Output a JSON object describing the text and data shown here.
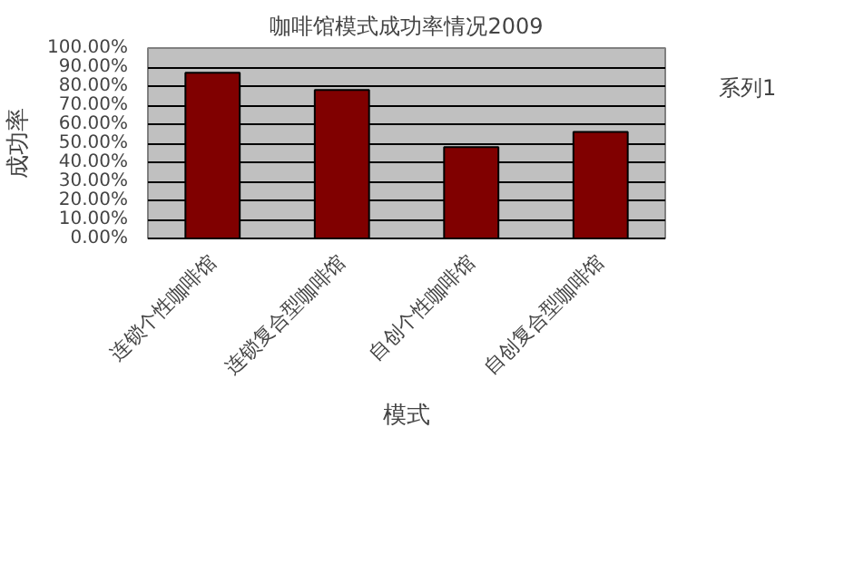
{
  "chart_data": {
    "type": "bar",
    "title": "咖啡馆模式成功率情况2009",
    "xlabel": "模式",
    "ylabel": "成功率",
    "categories": [
      "连锁个性咖啡馆",
      "连锁复合型咖啡馆",
      "自创个性咖啡馆",
      "自创复合型咖啡馆"
    ],
    "series": [
      {
        "name": "系列1",
        "color": "#800000",
        "values": [
          87,
          78,
          48,
          56
        ]
      }
    ],
    "ylim": [
      0,
      100
    ],
    "yticks": [
      {
        "value": 0,
        "label": "0.00%"
      },
      {
        "value": 10,
        "label": "10.00%"
      },
      {
        "value": 20,
        "label": "20.00%"
      },
      {
        "value": 30,
        "label": "30.00%"
      },
      {
        "value": 40,
        "label": "40.00%"
      },
      {
        "value": 50,
        "label": "50.00%"
      },
      {
        "value": 60,
        "label": "60.00%"
      },
      {
        "value": 70,
        "label": "70.00%"
      },
      {
        "value": 80,
        "label": "80.00%"
      },
      {
        "value": 90,
        "label": "90.00%"
      },
      {
        "value": 100,
        "label": "100.00%"
      }
    ],
    "grid": "y",
    "legend": "right"
  }
}
